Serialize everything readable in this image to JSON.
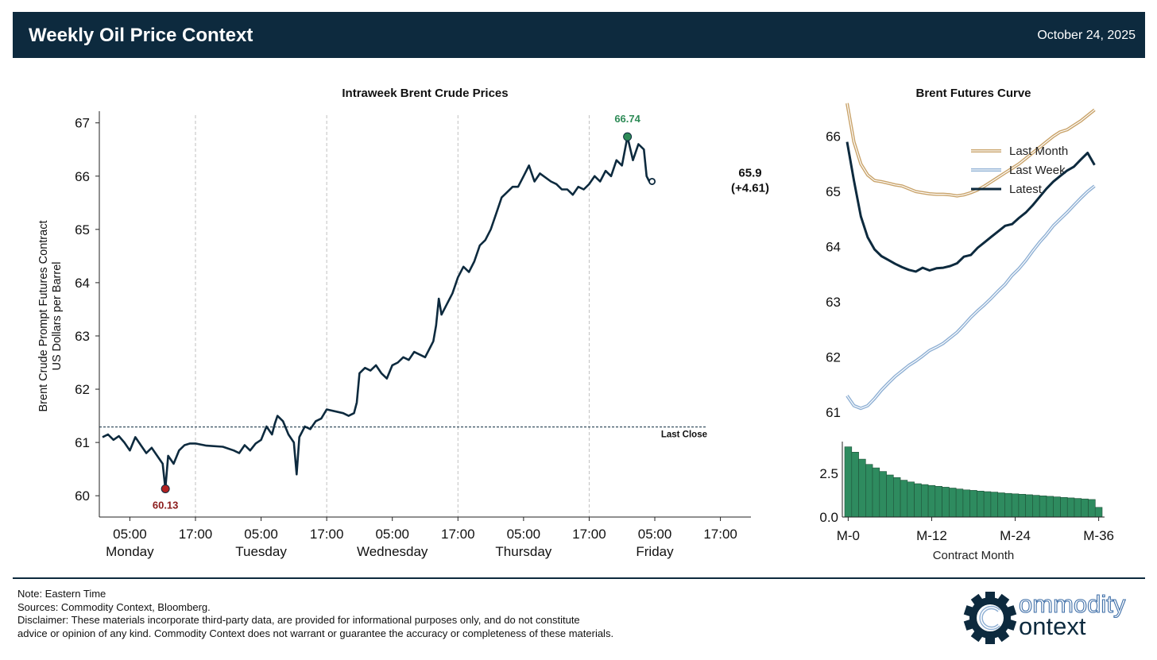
{
  "header": {
    "title": "Weekly Oil Price Context",
    "date": "October 24, 2025"
  },
  "colors": {
    "navy": "#0d2a3e",
    "high": "#2e8b57",
    "low": "#b22222",
    "last_month": "#c9a36a",
    "last_week": "#8fb0d4",
    "bars": "#2e8b5f"
  },
  "chart_data": [
    {
      "type": "line",
      "title": "Intraweek Brent Crude Prices",
      "ylabel_lines": [
        "Brent Crude Prompt Futures Contract",
        "US Dollars per Barrel"
      ],
      "ylim": [
        59.6,
        67.1
      ],
      "yticks": [
        60,
        61,
        62,
        63,
        64,
        65,
        66,
        67
      ],
      "xlim": [
        0,
        118
      ],
      "xticks": [
        {
          "x": 5,
          "time": "05:00",
          "day": "Monday"
        },
        {
          "x": 17,
          "time": "17:00",
          "day": ""
        },
        {
          "x": 29,
          "time": "05:00",
          "day": "Tuesday"
        },
        {
          "x": 41,
          "time": "17:00",
          "day": ""
        },
        {
          "x": 53,
          "time": "05:00",
          "day": "Wednesday"
        },
        {
          "x": 65,
          "time": "17:00",
          "day": ""
        },
        {
          "x": 77,
          "time": "05:00",
          "day": "Thursday"
        },
        {
          "x": 89,
          "time": "17:00",
          "day": ""
        },
        {
          "x": 101,
          "time": "05:00",
          "day": "Friday"
        },
        {
          "x": 113,
          "time": "17:00",
          "day": ""
        }
      ],
      "day_dividers": [
        17,
        41,
        65,
        89
      ],
      "reference": {
        "value": 61.29,
        "label": "Last Close"
      },
      "grid": false,
      "series": [
        {
          "name": "Brent",
          "points": [
            [
              0,
              61.1
            ],
            [
              1,
              61.15
            ],
            [
              2,
              61.05
            ],
            [
              3,
              61.12
            ],
            [
              4,
              61.0
            ],
            [
              5,
              60.85
            ],
            [
              6,
              61.1
            ],
            [
              7,
              60.95
            ],
            [
              8,
              60.8
            ],
            [
              9,
              60.9
            ],
            [
              10,
              60.75
            ],
            [
              11,
              60.6
            ],
            [
              11.5,
              60.13
            ],
            [
              12,
              60.75
            ],
            [
              13,
              60.6
            ],
            [
              14,
              60.85
            ],
            [
              15,
              60.95
            ],
            [
              16,
              60.98
            ],
            [
              17,
              60.98
            ],
            [
              19,
              60.94
            ],
            [
              22,
              60.92
            ],
            [
              24,
              60.85
            ],
            [
              25,
              60.8
            ],
            [
              26,
              60.95
            ],
            [
              27,
              60.85
            ],
            [
              28,
              60.98
            ],
            [
              29,
              61.05
            ],
            [
              30,
              61.3
            ],
            [
              31,
              61.15
            ],
            [
              31.5,
              61.35
            ],
            [
              32,
              61.5
            ],
            [
              33,
              61.4
            ],
            [
              34,
              61.15
            ],
            [
              35,
              61.0
            ],
            [
              35.5,
              60.4
            ],
            [
              36,
              61.1
            ],
            [
              37,
              61.3
            ],
            [
              38,
              61.25
            ],
            [
              39,
              61.4
            ],
            [
              40,
              61.45
            ],
            [
              41,
              61.62
            ],
            [
              44,
              61.55
            ],
            [
              45,
              61.5
            ],
            [
              46,
              61.55
            ],
            [
              46.5,
              61.75
            ],
            [
              47,
              62.3
            ],
            [
              48,
              62.4
            ],
            [
              49,
              62.35
            ],
            [
              50,
              62.45
            ],
            [
              51,
              62.3
            ],
            [
              52,
              62.2
            ],
            [
              53,
              62.45
            ],
            [
              54,
              62.5
            ],
            [
              55,
              62.6
            ],
            [
              56,
              62.55
            ],
            [
              57,
              62.7
            ],
            [
              58,
              62.65
            ],
            [
              59,
              62.6
            ],
            [
              60,
              62.8
            ],
            [
              60.5,
              62.9
            ],
            [
              61,
              63.2
            ],
            [
              61.5,
              63.7
            ],
            [
              62,
              63.4
            ],
            [
              63,
              63.6
            ],
            [
              64,
              63.8
            ],
            [
              65,
              64.1
            ],
            [
              66,
              64.3
            ],
            [
              67,
              64.2
            ],
            [
              68,
              64.4
            ],
            [
              69,
              64.7
            ],
            [
              70,
              64.8
            ],
            [
              71,
              65.0
            ],
            [
              72,
              65.3
            ],
            [
              73,
              65.6
            ],
            [
              74,
              65.7
            ],
            [
              75,
              65.8
            ],
            [
              76,
              65.8
            ],
            [
              77,
              66.0
            ],
            [
              78,
              66.2
            ],
            [
              79,
              65.9
            ],
            [
              80,
              66.05
            ],
            [
              82,
              65.9
            ],
            [
              83,
              65.85
            ],
            [
              84,
              65.75
            ],
            [
              85,
              65.75
            ],
            [
              86,
              65.65
            ],
            [
              87,
              65.8
            ],
            [
              88,
              65.75
            ],
            [
              89,
              65.85
            ],
            [
              90,
              66.0
            ],
            [
              91,
              65.9
            ],
            [
              92,
              66.1
            ],
            [
              93,
              66.0
            ],
            [
              94,
              66.3
            ],
            [
              95,
              66.2
            ],
            [
              96,
              66.74
            ],
            [
              97,
              66.3
            ],
            [
              98,
              66.6
            ],
            [
              99,
              66.5
            ],
            [
              99.5,
              66.0
            ],
            [
              100,
              65.9
            ],
            [
              100.5,
              65.9
            ]
          ]
        }
      ],
      "annotations": {
        "high": {
          "x": 96,
          "value": 66.74,
          "label": "66.74"
        },
        "low": {
          "x": 11.5,
          "value": 60.13,
          "label": "60.13"
        },
        "last": {
          "x": 100.5,
          "value": 65.9,
          "label": "65.9",
          "change": "(+4.61)"
        }
      }
    },
    {
      "type": "line",
      "title": "Brent Futures Curve",
      "ylim": [
        60.8,
        66.6
      ],
      "yticks": [
        61,
        62,
        63,
        64,
        65,
        66
      ],
      "xlim": [
        0,
        37
      ],
      "legend_placement": "top-right",
      "series": [
        {
          "name": "Last Month",
          "color_key": "last_month",
          "values": [
            66.6,
            65.9,
            65.5,
            65.3,
            65.2,
            65.18,
            65.15,
            65.12,
            65.1,
            65.05,
            65.0,
            64.98,
            64.96,
            64.95,
            64.95,
            64.94,
            64.92,
            64.94,
            64.98,
            65.03,
            65.1,
            65.18,
            65.26,
            65.34,
            65.42,
            65.5,
            65.6,
            65.7,
            65.8,
            65.9,
            66.0,
            66.08,
            66.12,
            66.2,
            66.28,
            66.38,
            66.48
          ]
        },
        {
          "name": "Last Week",
          "color_key": "last_week",
          "values": [
            61.3,
            61.12,
            61.07,
            61.12,
            61.25,
            61.4,
            61.53,
            61.65,
            61.75,
            61.85,
            61.93,
            62.02,
            62.12,
            62.18,
            62.25,
            62.35,
            62.45,
            62.58,
            62.72,
            62.84,
            62.95,
            63.07,
            63.2,
            63.32,
            63.48,
            63.6,
            63.75,
            63.92,
            64.08,
            64.22,
            64.38,
            64.5,
            64.62,
            64.75,
            64.88,
            65.0,
            65.1
          ]
        },
        {
          "name": "Latest",
          "color_key": "navy",
          "values": [
            65.9,
            65.2,
            64.55,
            64.17,
            63.95,
            63.83,
            63.76,
            63.69,
            63.63,
            63.58,
            63.55,
            63.62,
            63.57,
            63.61,
            63.62,
            63.65,
            63.7,
            63.82,
            63.85,
            63.98,
            64.08,
            64.18,
            64.28,
            64.38,
            64.41,
            64.52,
            64.62,
            64.75,
            64.9,
            65.05,
            65.18,
            65.28,
            65.38,
            65.45,
            65.58,
            65.7,
            65.48
          ]
        }
      ]
    },
    {
      "type": "bar",
      "xlabel": "Contract Month",
      "ylim": [
        0,
        4.3
      ],
      "yticks": [
        0.0,
        2.5
      ],
      "xticks": [
        {
          "x": 0,
          "label": "M-0"
        },
        {
          "x": 12,
          "label": "M-12"
        },
        {
          "x": 24,
          "label": "M-24"
        },
        {
          "x": 36,
          "label": "M-36"
        }
      ],
      "values": [
        4.0,
        3.7,
        3.3,
        3.0,
        2.8,
        2.6,
        2.4,
        2.25,
        2.1,
        2.0,
        1.9,
        1.85,
        1.8,
        1.75,
        1.7,
        1.65,
        1.6,
        1.55,
        1.52,
        1.48,
        1.45,
        1.42,
        1.38,
        1.35,
        1.32,
        1.3,
        1.27,
        1.24,
        1.21,
        1.18,
        1.15,
        1.12,
        1.09,
        1.06,
        1.03,
        1.0,
        0.55
      ]
    }
  ],
  "footer": {
    "lines": [
      "Note: Eastern Time",
      "Sources: Commodity Context, Bloomberg.",
      "Disclaimer: These materials incorporate third-party data, are provided for informational purposes only, and do not constitute",
      "advice or opinion of any kind. Commodity Context does not warrant or guarantee the accuracy or completeness of these materials."
    ]
  },
  "logo": {
    "line1": "ommodity",
    "line2": "ontext",
    "icon": "gear-c-logo-icon"
  }
}
